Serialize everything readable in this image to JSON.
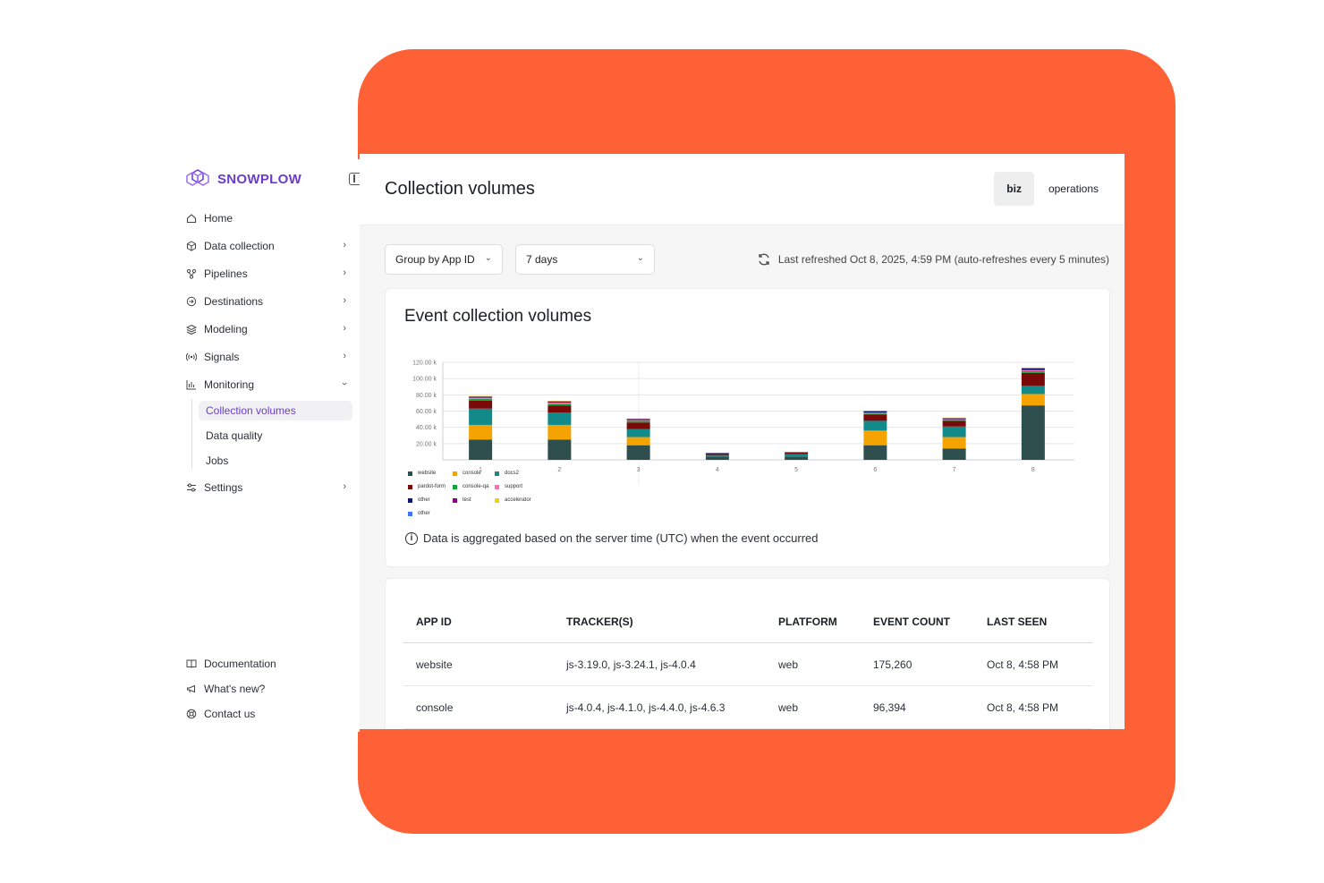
{
  "brand": {
    "name": "SNOWPLOW",
    "accent": "#6b3ccf",
    "backdrop": "#ff6136"
  },
  "sidebar": {
    "items": [
      {
        "label": "Home",
        "icon": "home-icon",
        "chevron": false
      },
      {
        "label": "Data collection",
        "icon": "cube-icon",
        "chevron": true
      },
      {
        "label": "Pipelines",
        "icon": "pipeline-icon",
        "chevron": true
      },
      {
        "label": "Destinations",
        "icon": "destination-icon",
        "chevron": true
      },
      {
        "label": "Modeling",
        "icon": "layers-icon",
        "chevron": true
      },
      {
        "label": "Signals",
        "icon": "signal-icon",
        "chevron": true
      },
      {
        "label": "Monitoring",
        "icon": "bar-chart-icon",
        "chevron": true,
        "expanded": true
      }
    ],
    "monitoring_sub": [
      {
        "label": "Collection volumes",
        "active": true
      },
      {
        "label": "Data quality"
      },
      {
        "label": "Jobs"
      }
    ],
    "settings": {
      "label": "Settings",
      "icon": "sliders-icon"
    },
    "footer": [
      {
        "label": "Documentation",
        "icon": "book-icon"
      },
      {
        "label": "What's new?",
        "icon": "megaphone-icon"
      },
      {
        "label": "Contact us",
        "icon": "lifebuoy-icon"
      }
    ]
  },
  "header": {
    "title": "Collection volumes",
    "tabs": [
      {
        "label": "biz",
        "selected": true
      },
      {
        "label": "operations"
      }
    ]
  },
  "filters": {
    "group_by": "Group by App ID",
    "range": "7 days"
  },
  "refresh_text": "Last refreshed Oct 8, 2025, 4:59 PM (auto-refreshes every 5 minutes)",
  "chart_card": {
    "title": "Event collection volumes",
    "note": "Data is aggregated based on the server time (UTC) when the event occurred"
  },
  "chart_data": {
    "type": "bar",
    "stacked": true,
    "categories": [
      "1",
      "2",
      "3",
      "4",
      "5",
      "6",
      "7",
      "8"
    ],
    "y_ticks": [
      "120.00 k",
      "100.00 k",
      "80.00 k",
      "60.00 k",
      "40.00 k",
      "20.00 k"
    ],
    "ylim": [
      0,
      120000
    ],
    "grid": true,
    "legend_position": "bottom-left",
    "series": [
      {
        "name": "website",
        "color": "#2f4f4f",
        "values": [
          25000,
          25000,
          18000,
          4000,
          4000,
          18000,
          14000,
          67000
        ]
      },
      {
        "name": "console",
        "color": "#f5a300",
        "values": [
          18000,
          18000,
          10000,
          0,
          0,
          18000,
          14000,
          14000
        ]
      },
      {
        "name": "docs2",
        "color": "#138a8a",
        "values": [
          20000,
          15000,
          10000,
          2000,
          3000,
          12000,
          13000,
          10000
        ]
      },
      {
        "name": "pardot-form",
        "color": "#7a0a0a",
        "values": [
          10000,
          9000,
          8000,
          2000,
          2000,
          8000,
          7000,
          16000
        ]
      },
      {
        "name": "console-qa",
        "color": "#14a33a",
        "values": [
          2000,
          2000,
          2000,
          0,
          0,
          1000,
          1000,
          2000
        ]
      },
      {
        "name": "support",
        "color": "#ff6fae",
        "values": [
          1500,
          1500,
          1000,
          0,
          0,
          1000,
          1000,
          1500
        ]
      },
      {
        "name": "other",
        "color": "#12137a",
        "values": [
          1000,
          1000,
          1000,
          500,
          500,
          1500,
          1000,
          2000
        ]
      },
      {
        "name": "test",
        "color": "#8b008b",
        "values": [
          500,
          500,
          500,
          0,
          0,
          500,
          500,
          500
        ]
      },
      {
        "name": "accelerator",
        "color": "#f5d000",
        "values": [
          500,
          500,
          500,
          0,
          0,
          500,
          500,
          500
        ]
      },
      {
        "name": "other",
        "color": "#3f74ff",
        "values": [
          0,
          0,
          0,
          0,
          0,
          0,
          0,
          0
        ]
      }
    ]
  },
  "table": {
    "columns": [
      "APP ID",
      "TRACKER(S)",
      "PLATFORM",
      "EVENT COUNT",
      "LAST SEEN"
    ],
    "rows": [
      [
        "website",
        "js-3.19.0, js-3.24.1, js-4.0.4",
        "web",
        "175,260",
        "Oct 8, 4:58 PM"
      ],
      [
        "console",
        "js-4.0.4, js-4.1.0, js-4.4.0, js-4.6.3",
        "web",
        "96,394",
        "Oct 8, 4:58 PM"
      ]
    ]
  }
}
